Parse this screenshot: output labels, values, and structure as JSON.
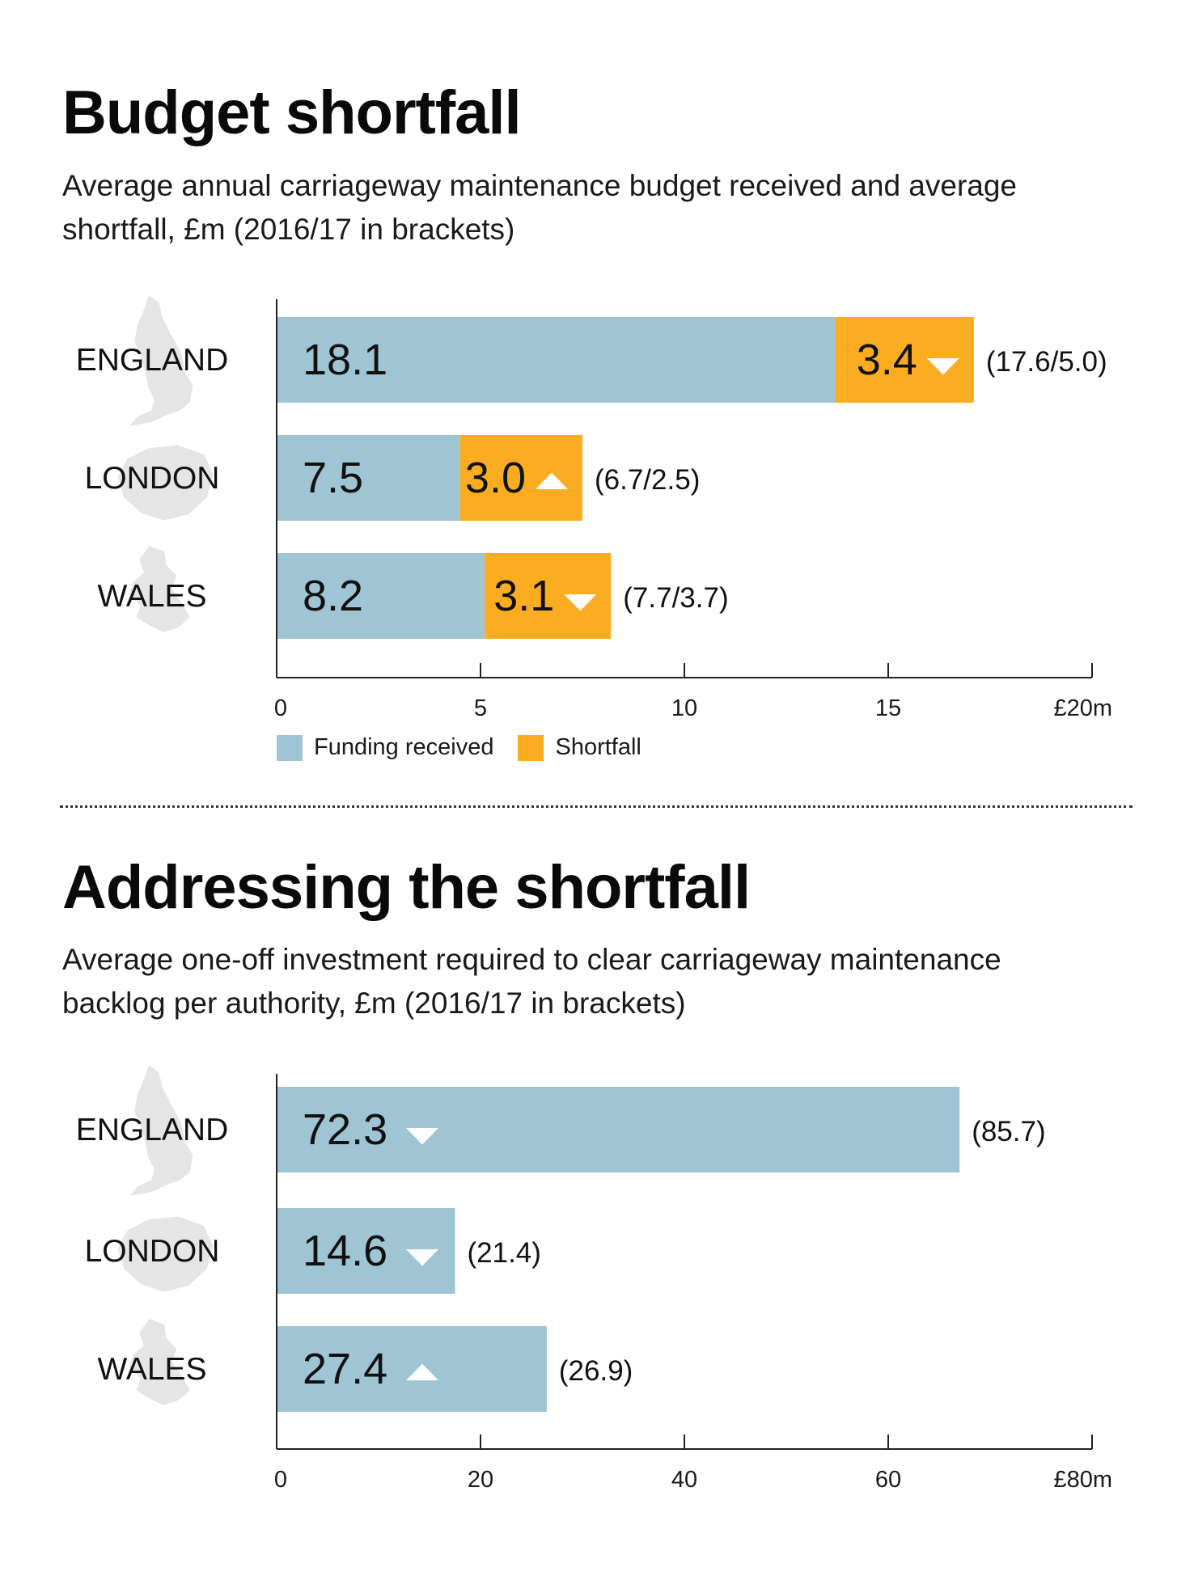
{
  "colors": {
    "funding": "#9fc5d4",
    "shortfall": "#fbad21",
    "map": "#e5e5e6",
    "axis": "#222222"
  },
  "section1": {
    "title": "Budget shortfall",
    "subtitle": "Average annual carriageway maintenance budget received and average shortfall, £m (2016/17 in brackets)",
    "legend": {
      "funding": "Funding received",
      "shortfall": "Shortfall"
    }
  },
  "section2": {
    "title": "Addressing the shortfall",
    "subtitle": "Average one-off investment required to clear carriageway maintenance backlog per authority, £m (2016/17 in brackets)"
  },
  "chart_data": [
    {
      "type": "bar",
      "orientation": "horizontal",
      "stacked": true,
      "categories": [
        "ENGLAND",
        "LONDON",
        "WALES"
      ],
      "category_icons": [
        "england-map-icon",
        "london-map-icon",
        "wales-map-icon"
      ],
      "series": [
        {
          "name": "Funding received",
          "values": [
            18.1,
            7.5,
            8.2
          ],
          "labels": [
            "18.1",
            "7.5",
            "8.2"
          ],
          "drawn_length": [
            13.7,
            4.5,
            5.1
          ]
        },
        {
          "name": "Shortfall",
          "values": [
            3.4,
            3.0,
            3.1
          ],
          "labels": [
            "3.4",
            "3.0",
            "3.1"
          ],
          "drawn_length": [
            3.4,
            3.0,
            3.1
          ],
          "trend": [
            "down",
            "up",
            "down"
          ]
        }
      ],
      "previous_labels": [
        "(17.6/5.0)",
        "(6.7/2.5)",
        "(7.7/3.7)"
      ],
      "xlim": [
        0,
        20
      ],
      "xticks": [
        0,
        5,
        10,
        15,
        20
      ],
      "xtick_labels": [
        "0",
        "5",
        "10",
        "15",
        "£20m"
      ]
    },
    {
      "type": "bar",
      "orientation": "horizontal",
      "categories": [
        "ENGLAND",
        "LONDON",
        "WALES"
      ],
      "category_icons": [
        "england-map-icon",
        "london-map-icon",
        "wales-map-icon"
      ],
      "series": [
        {
          "values": [
            72.3,
            14.6,
            27.4
          ],
          "labels": [
            "72.3",
            "14.6",
            "27.4"
          ],
          "drawn_length": [
            67.0,
            17.5,
            26.5
          ],
          "trend": [
            "down",
            "down",
            "up"
          ]
        }
      ],
      "previous_labels": [
        "(85.7)",
        "(21.4)",
        "(26.9)"
      ],
      "xlim": [
        0,
        80
      ],
      "xticks": [
        0,
        20,
        40,
        60,
        80
      ],
      "xtick_labels": [
        "0",
        "20",
        "40",
        "60",
        "£80m"
      ]
    }
  ]
}
